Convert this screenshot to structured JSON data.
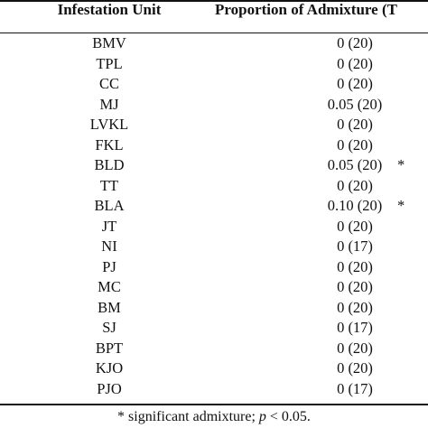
{
  "table": {
    "headers": {
      "unit": "Infestation Unit",
      "proportion": "Proportion of Admixture (T"
    },
    "rows": [
      {
        "unit": "BMV",
        "value": "0 (20)",
        "mark": ""
      },
      {
        "unit": "TPL",
        "value": "0 (20)",
        "mark": ""
      },
      {
        "unit": "CC",
        "value": "0 (20)",
        "mark": ""
      },
      {
        "unit": "MJ",
        "value": "0.05 (20)",
        "mark": ""
      },
      {
        "unit": "LVKL",
        "value": "0 (20)",
        "mark": ""
      },
      {
        "unit": "FKL",
        "value": "0 (20)",
        "mark": ""
      },
      {
        "unit": "BLD",
        "value": "0.05 (20)",
        "mark": "*"
      },
      {
        "unit": "TT",
        "value": "0 (20)",
        "mark": ""
      },
      {
        "unit": "BLA",
        "value": "0.10 (20)",
        "mark": "*"
      },
      {
        "unit": "JT",
        "value": "0 (20)",
        "mark": ""
      },
      {
        "unit": "NI",
        "value": "0 (17)",
        "mark": ""
      },
      {
        "unit": "PJ",
        "value": "0 (20)",
        "mark": ""
      },
      {
        "unit": "MC",
        "value": "0 (20)",
        "mark": ""
      },
      {
        "unit": "BM",
        "value": "0 (20)",
        "mark": ""
      },
      {
        "unit": "SJ",
        "value": "0 (17)",
        "mark": ""
      },
      {
        "unit": "BPT",
        "value": "0 (20)",
        "mark": ""
      },
      {
        "unit": "KJO",
        "value": "0 (20)",
        "mark": ""
      },
      {
        "unit": "PJO",
        "value": "0 (17)",
        "mark": ""
      }
    ]
  },
  "footnote": {
    "prefix": "* significant admixture; ",
    "p_symbol": "p",
    "suffix": " < 0.05."
  }
}
